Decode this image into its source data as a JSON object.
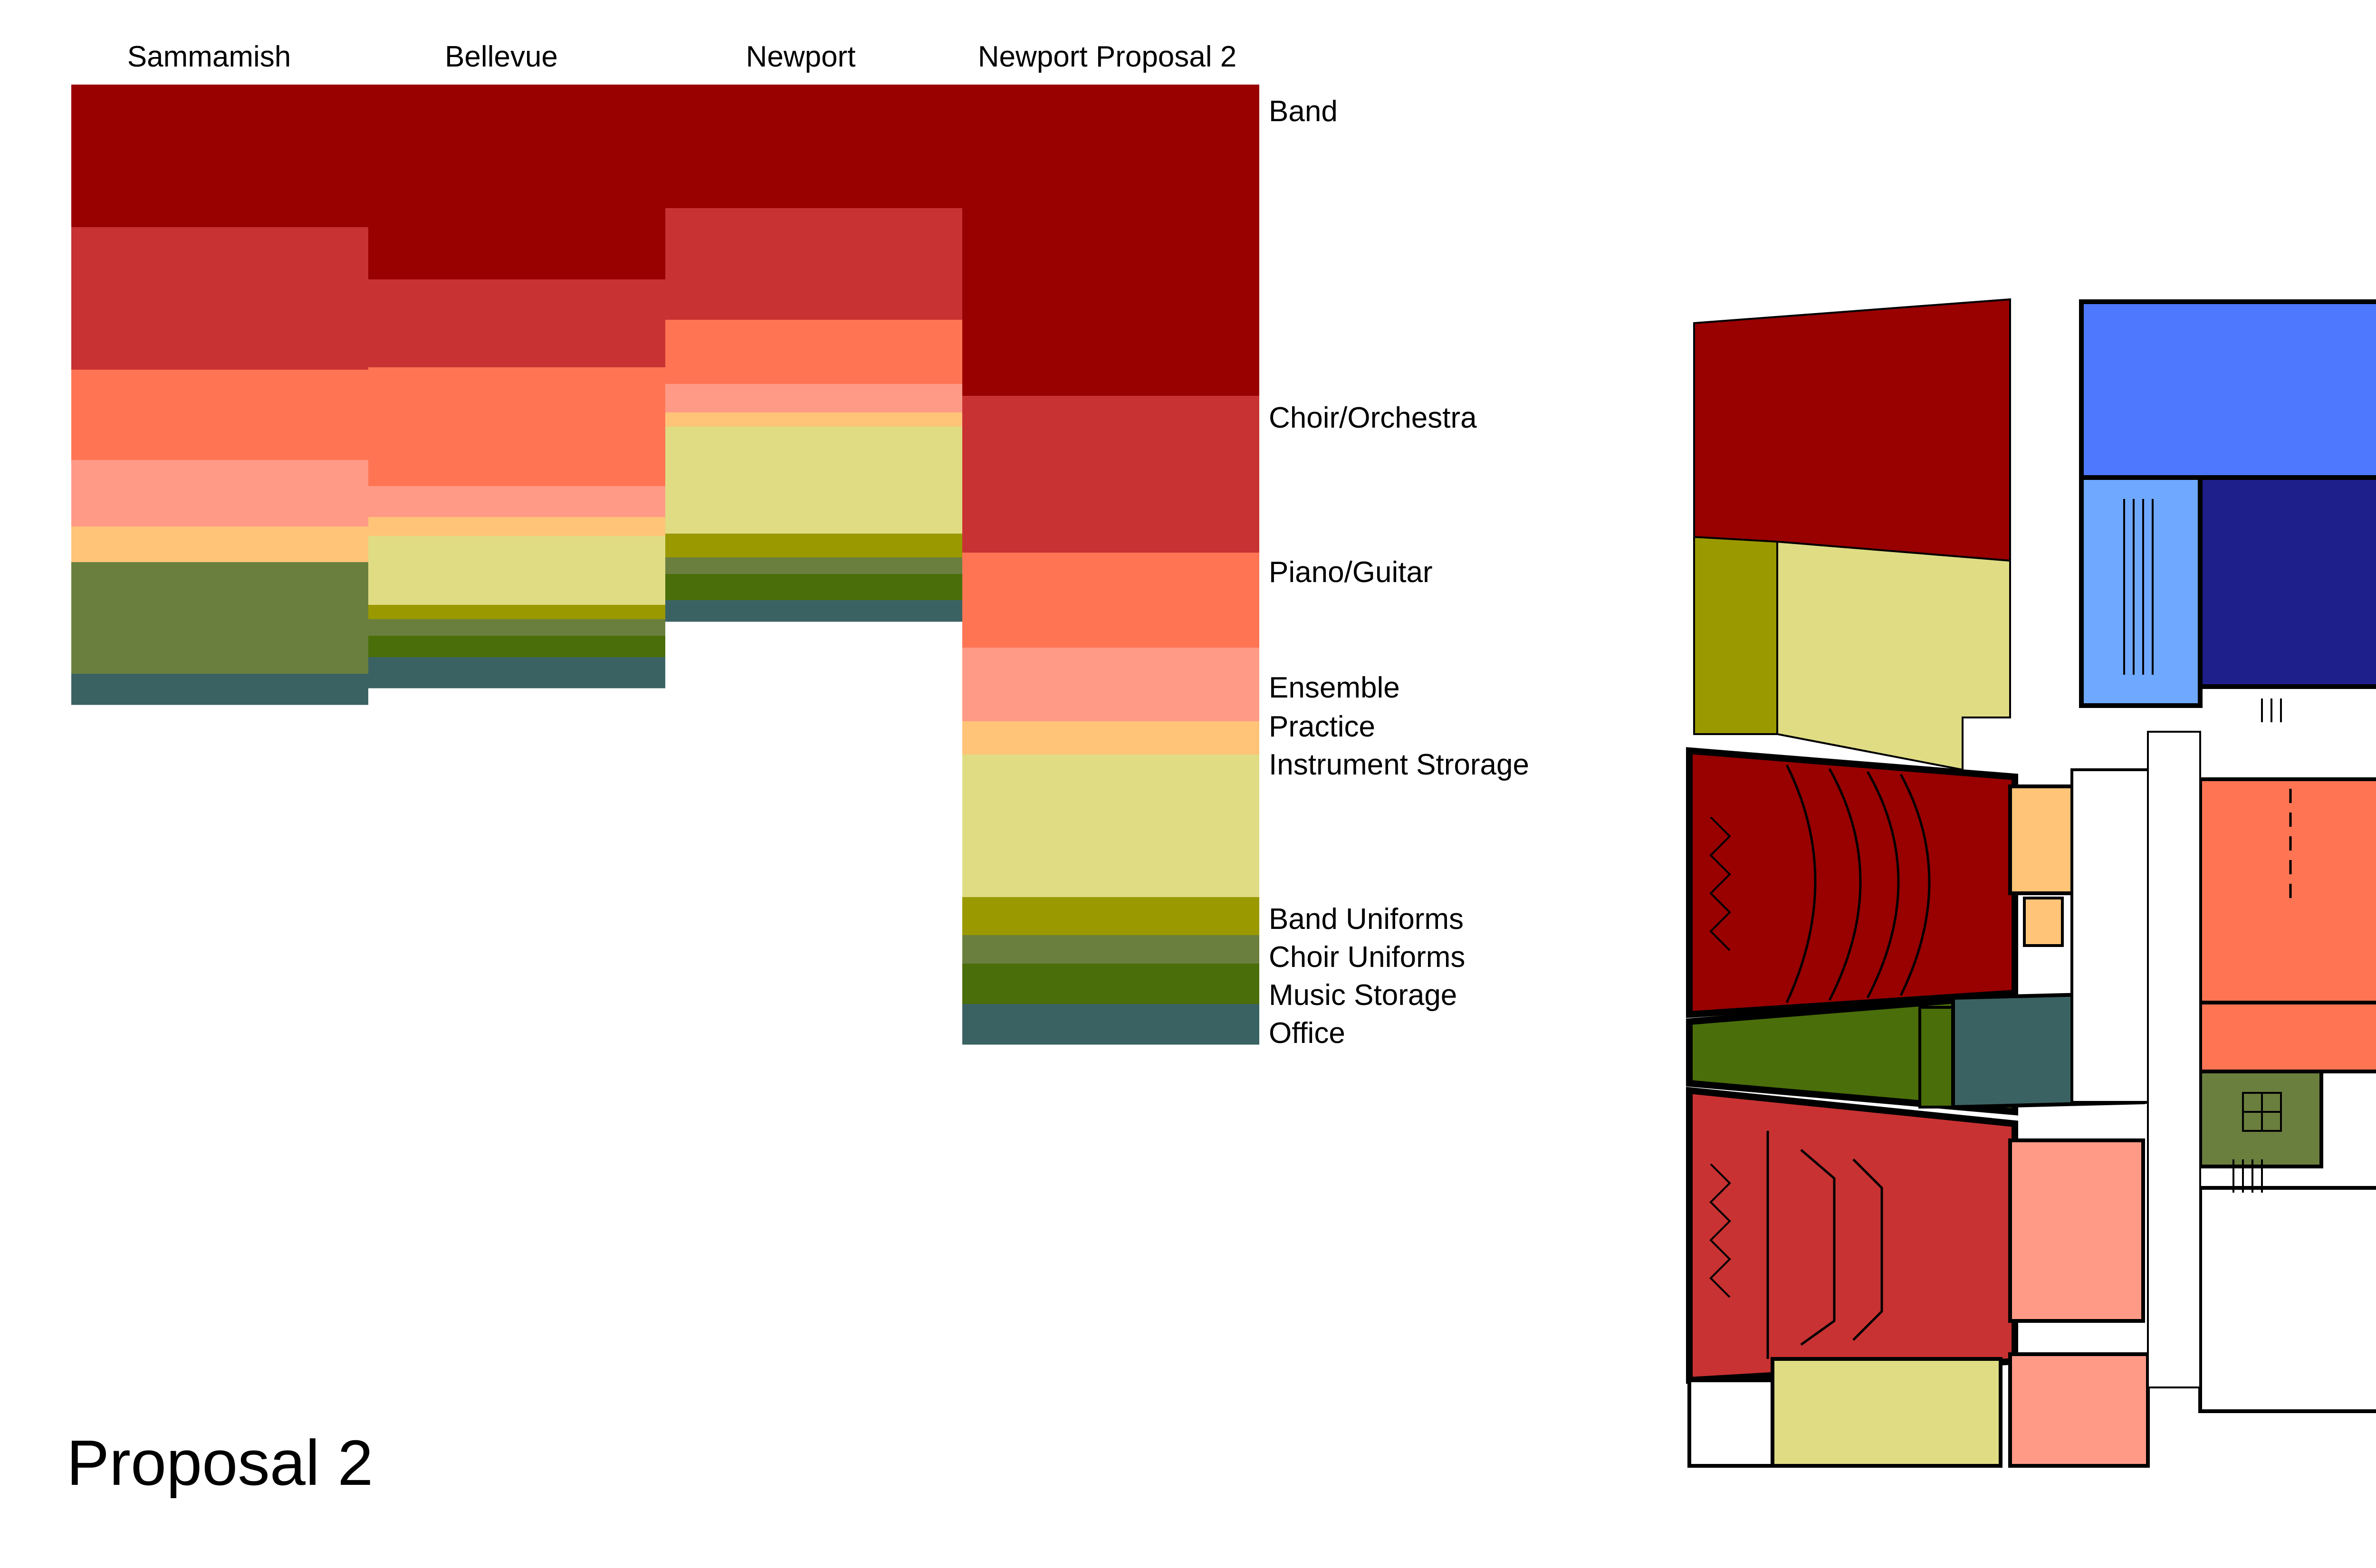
{
  "title": "Proposal 2",
  "colors": {
    "band": "#990000",
    "choir_orchestra": "#C83232",
    "piano_guitar": "#FF7554",
    "ensemble": "#FF9A86",
    "practice": "#FFC478",
    "instrument_storage": "#E0DC84",
    "band_uniforms": "#9B9900",
    "choir_uniforms": "#6A7F3E",
    "music_storage": "#4A6E0A",
    "office": "#3B6262",
    "blue": "#4E79FF",
    "light_blue": "#6FA8FF",
    "navy": "#1F1F8C",
    "wall": "#000000"
  },
  "chart_data": {
    "type": "stacked-area-columns",
    "categories": [
      "Sammamish",
      "Bellevue",
      "Newport",
      "Newport Proposal 2"
    ],
    "legend": [
      "Band",
      "Choir/Orchestra",
      "Piano/Guitar",
      "Ensemble",
      "Practice",
      "Instrument Strorage",
      "Band Uniforms",
      "Choir Uniforms",
      "Music Storage",
      "Office"
    ],
    "series": [
      {
        "name": "Band",
        "color_key": "band",
        "values": [
          300,
          410,
          260,
          655
        ]
      },
      {
        "name": "Choir/Orchestra",
        "color_key": "choir_orchestra",
        "values": [
          300,
          185,
          235,
          330
        ]
      },
      {
        "name": "Piano/Guitar",
        "color_key": "piano_guitar",
        "values": [
          190,
          250,
          135,
          200
        ]
      },
      {
        "name": "Ensemble",
        "color_key": "ensemble",
        "values": [
          140,
          65,
          60,
          155
        ]
      },
      {
        "name": "Practice",
        "color_key": "practice",
        "values": [
          75,
          40,
          30,
          70
        ]
      },
      {
        "name": "Instrument Strorage",
        "color_key": "instrument_storage",
        "values": [
          0,
          145,
          225,
          300
        ]
      },
      {
        "name": "Band Uniforms",
        "color_key": "band_uniforms",
        "values": [
          0,
          30,
          50,
          80
        ]
      },
      {
        "name": "Choir Uniforms",
        "color_key": "choir_uniforms",
        "values": [
          235,
          35,
          35,
          60
        ]
      },
      {
        "name": "Music Storage",
        "color_key": "music_storage",
        "values": [
          0,
          45,
          55,
          85
        ]
      },
      {
        "name": "Office",
        "color_key": "office",
        "values": [
          65,
          65,
          45,
          85
        ]
      }
    ]
  }
}
